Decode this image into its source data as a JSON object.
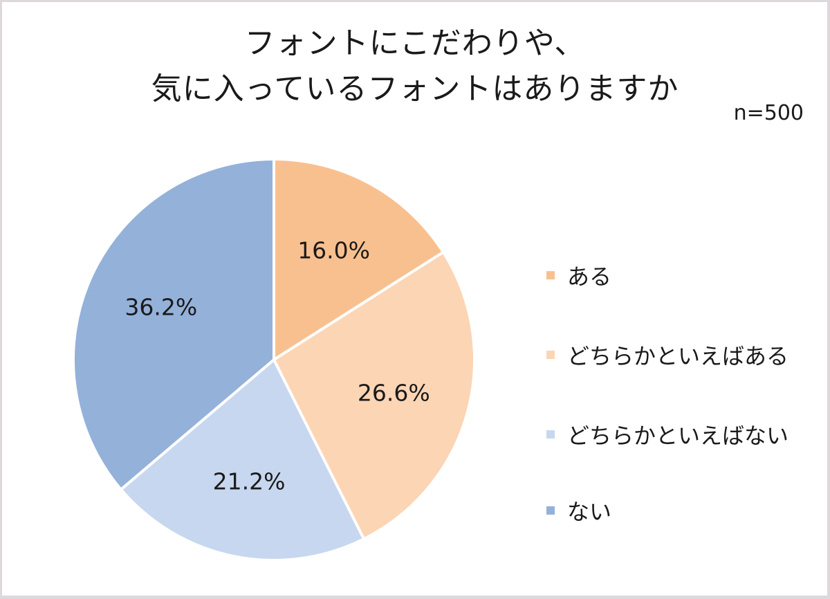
{
  "title": {
    "line1": "フォントにこだわりや、",
    "line2": "気に入っているフォントはありますか"
  },
  "sample_size": "n=500",
  "chart_data": {
    "type": "pie",
    "title": "フォントにこだわりや、気に入っているフォントはありますか",
    "subtitle": "n=500",
    "start_angle": "12 o'clock, clockwise",
    "legend_position": "right",
    "categories": [
      "ある",
      "どちらかといえばある",
      "どちらかといえばない",
      "ない"
    ],
    "values": [
      16.0,
      26.6,
      21.2,
      36.2
    ],
    "labels": [
      "16.0%",
      "26.6%",
      "21.2%",
      "36.2%"
    ],
    "colors": [
      "#f9c08f",
      "#fcd5b5",
      "#c7d7ef",
      "#94b1d9"
    ]
  },
  "legend": {
    "items": [
      {
        "label": "ある",
        "color": "#f9c08f"
      },
      {
        "label": "どちらかといえばある",
        "color": "#fcd5b5"
      },
      {
        "label": "どちらかといえばない",
        "color": "#c7d7ef"
      },
      {
        "label": "ない",
        "color": "#94b1d9"
      }
    ]
  }
}
